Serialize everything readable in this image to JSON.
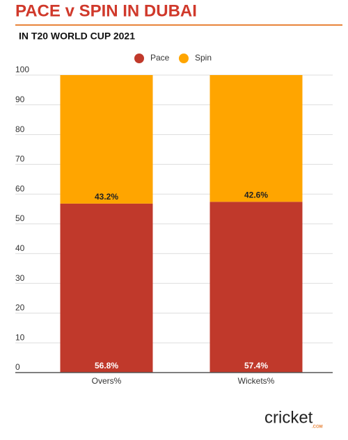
{
  "chart_data": {
    "type": "stacked_bar",
    "title": "PACE v SPIN IN DUBAI",
    "subtitle": "IN T20 WORLD CUP 2021",
    "categories": [
      "Overs%",
      "Wickets%"
    ],
    "series": [
      {
        "name": "Pace",
        "color": "#c0392b",
        "values": [
          56.8,
          57.4
        ],
        "value_labels": [
          "56.8%",
          "57.4%"
        ]
      },
      {
        "name": "Spin",
        "color": "#ffa500",
        "values": [
          43.2,
          42.6
        ],
        "value_labels": [
          "43.2%",
          "42.6%"
        ]
      }
    ],
    "ylim": [
      0,
      100
    ],
    "yticks": [
      0,
      10,
      20,
      30,
      40,
      50,
      60,
      70,
      80,
      90,
      100
    ],
    "grid": true,
    "legend": "top"
  },
  "logo": {
    "name": "cricket",
    "suffix": ".COM"
  }
}
